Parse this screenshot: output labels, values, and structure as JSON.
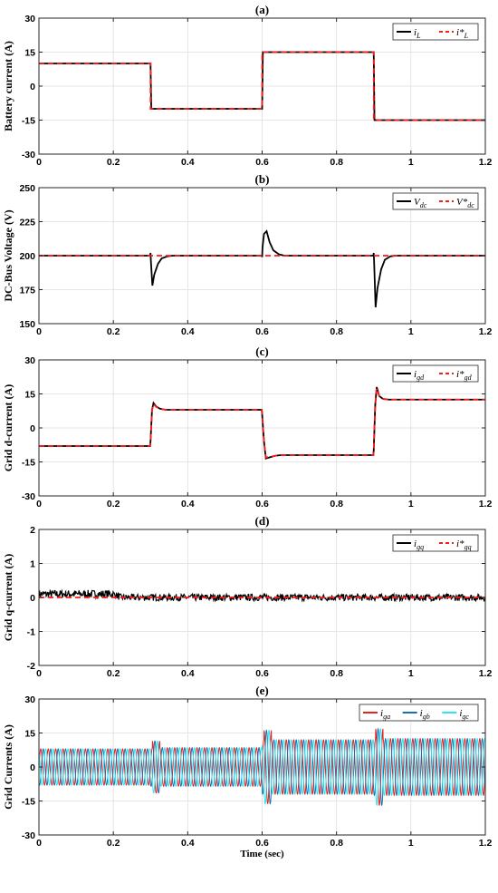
{
  "chart_data": [
    {
      "type": "line",
      "title": "(a)",
      "xlabel": "",
      "ylabel": "Battery current (A)",
      "xlim": [
        0,
        1.2
      ],
      "ylim": [
        -30,
        30
      ],
      "xticks": [
        "0",
        "0.2",
        "0.4",
        "0.6",
        "0.8",
        "1",
        "1.2"
      ],
      "yticks": [
        "-30",
        "-15",
        "0",
        "15",
        "30"
      ],
      "grid": true,
      "legend_position": "top-right",
      "series": [
        {
          "name": "i_L",
          "color": "#000000",
          "style": "solid",
          "x": [
            0,
            0.3,
            0.302,
            0.6,
            0.602,
            0.9,
            0.902,
            1.2
          ],
          "y": [
            10,
            10,
            -10,
            -10,
            15,
            15,
            -15,
            -15
          ]
        },
        {
          "name": "i*_L",
          "color": "#ff1a1a",
          "style": "dashed",
          "x": [
            0,
            0.3,
            0.3,
            0.6,
            0.6,
            0.9,
            0.9,
            1.2
          ],
          "y": [
            10,
            10,
            -10,
            -10,
            15,
            15,
            -15,
            -15
          ]
        }
      ]
    },
    {
      "type": "line",
      "title": "(b)",
      "xlabel": "",
      "ylabel": "DC-Bus Voltage (V)",
      "xlim": [
        0,
        1.2
      ],
      "ylim": [
        150,
        250
      ],
      "xticks": [
        "0",
        "0.2",
        "0.4",
        "0.6",
        "0.8",
        "1",
        "1.2"
      ],
      "yticks": [
        "150",
        "175",
        "200",
        "225",
        "250"
      ],
      "grid": true,
      "legend_position": "top-right",
      "series": [
        {
          "name": "V_dc",
          "color": "#000000",
          "style": "solid",
          "x": [
            0,
            0.299,
            0.3,
            0.301,
            0.305,
            0.31,
            0.32,
            0.33,
            0.345,
            0.36,
            0.599,
            0.6,
            0.601,
            0.605,
            0.612,
            0.62,
            0.63,
            0.645,
            0.66,
            0.899,
            0.9,
            0.901,
            0.905,
            0.91,
            0.92,
            0.93,
            0.945,
            0.96,
            1.2
          ],
          "y": [
            200,
            200,
            202,
            196,
            178,
            186,
            194,
            198,
            199.5,
            200,
            200,
            199,
            206,
            216,
            218,
            210,
            204,
            201,
            200,
            200,
            202,
            196,
            162,
            176,
            190,
            197,
            199.5,
            200,
            200
          ]
        },
        {
          "name": "V*_dc",
          "color": "#ff1a1a",
          "style": "dashed",
          "x": [
            0,
            1.2
          ],
          "y": [
            200,
            200
          ]
        }
      ]
    },
    {
      "type": "line",
      "title": "(c)",
      "xlabel": "",
      "ylabel": "Grid d-current (A)",
      "xlim": [
        0,
        1.2
      ],
      "ylim": [
        -30,
        30
      ],
      "xticks": [
        "0",
        "0.2",
        "0.4",
        "0.6",
        "0.8",
        "1",
        "1.2"
      ],
      "yticks": [
        "-30",
        "-15",
        "0",
        "15",
        "30"
      ],
      "grid": true,
      "legend_position": "top-right",
      "series": [
        {
          "name": "i_gd",
          "color": "#000000",
          "style": "solid",
          "x": [
            0,
            0.299,
            0.3,
            0.304,
            0.308,
            0.315,
            0.325,
            0.34,
            0.599,
            0.6,
            0.605,
            0.61,
            0.62,
            0.635,
            0.65,
            0.899,
            0.9,
            0.904,
            0.908,
            0.915,
            0.925,
            0.94,
            1.2
          ],
          "y": [
            -8,
            -8,
            -6,
            8,
            11,
            9.5,
            8.5,
            8,
            8,
            6,
            -6,
            -13.5,
            -13,
            -12.3,
            -12,
            -12,
            -10,
            10,
            18,
            14,
            12.8,
            12.5,
            12.5
          ]
        },
        {
          "name": "i*_gd",
          "color": "#ff1a1a",
          "style": "dashed",
          "x": [
            0,
            0.299,
            0.3,
            0.304,
            0.308,
            0.315,
            0.325,
            0.34,
            0.599,
            0.6,
            0.605,
            0.61,
            0.62,
            0.635,
            0.65,
            0.899,
            0.9,
            0.904,
            0.908,
            0.915,
            0.925,
            0.94,
            1.2
          ],
          "y": [
            -8,
            -8,
            -6,
            8,
            10.5,
            9.3,
            8.5,
            8,
            8,
            6,
            -6,
            -13,
            -12.8,
            -12.3,
            -12,
            -12,
            -10,
            10,
            17.5,
            14,
            12.8,
            12.5,
            12.5
          ]
        }
      ]
    },
    {
      "type": "line",
      "title": "(d)",
      "xlabel": "",
      "ylabel": "Grid q-current (A)",
      "xlim": [
        0,
        1.2
      ],
      "ylim": [
        -2,
        2
      ],
      "xticks": [
        "0",
        "0.2",
        "0.4",
        "0.6",
        "0.8",
        "1",
        "1.2"
      ],
      "yticks": [
        "-2",
        "-1",
        "0",
        "1",
        "2"
      ],
      "grid": true,
      "legend_position": "top-right",
      "series": [
        {
          "name": "i_gq",
          "color": "#000000",
          "style": "noisy band",
          "x": [
            0,
            0.2,
            0.22,
            1.2
          ],
          "y_center": [
            0.1,
            0.1,
            0.0,
            0.0
          ],
          "y_spread": [
            0.12,
            0.12,
            0.1,
            0.1
          ]
        },
        {
          "name": "i*_gq",
          "color": "#ff1a1a",
          "style": "dashed",
          "x": [
            0,
            1.2
          ],
          "y": [
            0,
            0
          ]
        }
      ]
    },
    {
      "type": "line",
      "title": "(e)",
      "xlabel": "Time (sec)",
      "ylabel": "Grid Currents (A)",
      "xlim": [
        0,
        1.2
      ],
      "ylim": [
        -30,
        30
      ],
      "xticks": [
        "0",
        "0.2",
        "0.4",
        "0.6",
        "0.8",
        "1",
        "1.2"
      ],
      "yticks": [
        "-30",
        "-15",
        "0",
        "15",
        "30"
      ],
      "grid": true,
      "legend_position": "top-right",
      "frequency_hz": 50,
      "amplitude_segments": [
        {
          "x0": 0,
          "x1": 0.3,
          "amplitude": 8
        },
        {
          "x0": 0.3,
          "x1": 0.6,
          "amplitude": 8.5
        },
        {
          "x0": 0.6,
          "x1": 0.9,
          "amplitude": 12
        },
        {
          "x0": 0.9,
          "x1": 1.2,
          "amplitude": 12.5
        }
      ],
      "series": [
        {
          "name": "i_ga",
          "color": "#e8231f",
          "phase_deg": 0
        },
        {
          "name": "i_gb",
          "color": "#1a6fb0",
          "phase_deg": -120
        },
        {
          "name": "i_gc",
          "color": "#2ee6f0",
          "phase_deg": 120
        }
      ]
    }
  ]
}
